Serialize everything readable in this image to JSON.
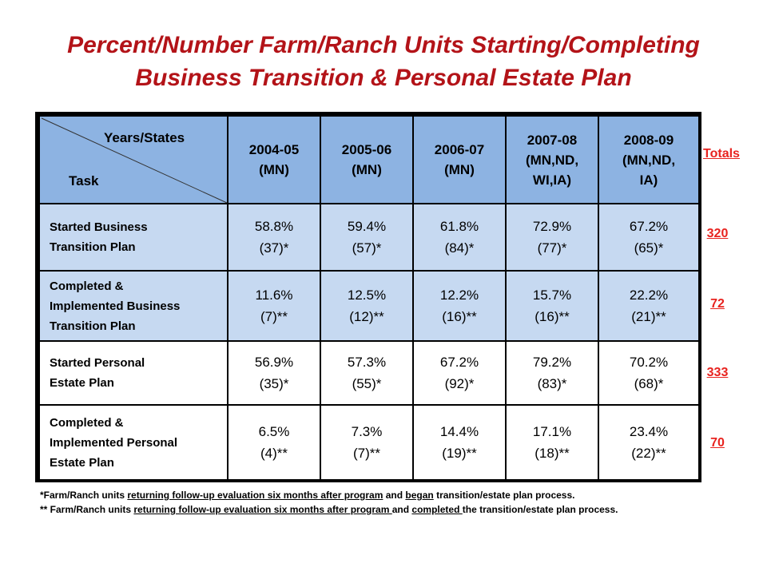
{
  "title": {
    "line1": "Percent/Number Farm/Ranch Units Starting/Completing",
    "line2": "Business Transition & Personal Estate Plan"
  },
  "table": {
    "corner_top": "Years/States",
    "corner_bottom": "Task",
    "columns": [
      {
        "l1": "2004-05",
        "l2": "(MN)",
        "l3": ""
      },
      {
        "l1": "2005-06",
        "l2": "(MN)",
        "l3": ""
      },
      {
        "l1": "2006-07",
        "l2": "(MN)",
        "l3": ""
      },
      {
        "l1": "2007-08",
        "l2": "(MN,ND,",
        "l3": "WI,IA)"
      },
      {
        "l1": "2008-09",
        "l2": "(MN,ND,",
        "l3": "IA)"
      }
    ],
    "rows": [
      {
        "label": [
          "Started Business",
          "Transition  Plan"
        ],
        "cells": [
          {
            "pct": "58.8%",
            "n": "(37)*"
          },
          {
            "pct": "59.4%",
            "n": "(57)*"
          },
          {
            "pct": "61.8%",
            "n": "(84)*"
          },
          {
            "pct": "72.9%",
            "n": "(77)*"
          },
          {
            "pct": "67.2%",
            "n": "(65)*"
          }
        ]
      },
      {
        "label": [
          "Completed &",
          "Implemented Business",
          "Transition  Plan"
        ],
        "cells": [
          {
            "pct": "11.6%",
            "n": "(7)**"
          },
          {
            "pct": "12.5%",
            "n": "(12)**"
          },
          {
            "pct": "12.2%",
            "n": "(16)**"
          },
          {
            "pct": "15.7%",
            "n": "(16)**"
          },
          {
            "pct": "22.2%",
            "n": "(21)**"
          }
        ]
      },
      {
        "label": [
          "Started Personal",
          "Estate Plan"
        ],
        "cells": [
          {
            "pct": "56.9%",
            "n": "(35)*"
          },
          {
            "pct": "57.3%",
            "n": "(55)*"
          },
          {
            "pct": "67.2%",
            "n": "(92)*"
          },
          {
            "pct": "79.2%",
            "n": "(83)*"
          },
          {
            "pct": "70.2%",
            "n": "(68)*"
          }
        ]
      },
      {
        "label": [
          "Completed &",
          "Implemented Personal",
          "Estate Plan"
        ],
        "cells": [
          {
            "pct": "6.5%",
            "n": "(4)**"
          },
          {
            "pct": "7.3%",
            "n": "(7)**"
          },
          {
            "pct": "14.4%",
            "n": "(19)**"
          },
          {
            "pct": "17.1%",
            "n": "(18)**"
          },
          {
            "pct": "23.4%",
            "n": "(22)**"
          }
        ]
      }
    ]
  },
  "totals": {
    "heading": "Totals",
    "values": [
      "320",
      "72",
      "333",
      "70"
    ]
  },
  "notes": {
    "n1": {
      "a": "*Farm/Ranch units ",
      "b": "returning follow-up evaluation six months after program",
      "c": " and ",
      "d": "began",
      "e": " transition/estate plan process."
    },
    "n2": {
      "a": "** Farm/Ranch units ",
      "b": "returning follow-up evaluation six months after program ",
      "c": "and ",
      "d": "completed ",
      "e": "the transition/estate plan process."
    }
  }
}
